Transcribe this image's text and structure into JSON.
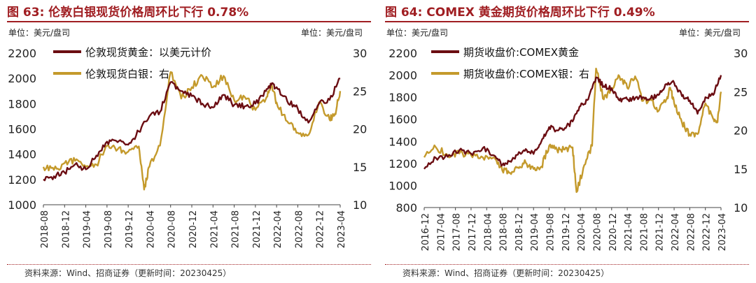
{
  "colors": {
    "gold_series": "#6b0d12",
    "silver_series": "#c49a2c",
    "title": "#a01e22"
  },
  "footer_source": "资料来源：Wind、招商证券（更新时间：20230425）",
  "chart_data": [
    {
      "type": "line",
      "title": "图 63:  伦敦白银现货价格周环比下行 0.78%",
      "unit_left": "单位：美元/盘司",
      "unit_right": "单位：美元/盘司",
      "x_tick_labels": [
        "2018-08",
        "2018-12",
        "2019-04",
        "2019-08",
        "2019-12",
        "2020-04",
        "2020-08",
        "2020-12",
        "2021-04",
        "2021-08",
        "2021-12",
        "2022-04",
        "2022-08",
        "2022-12",
        "2023-04"
      ],
      "x_range": [
        "2018-08",
        "2023-04"
      ],
      "y_left": {
        "range": [
          1000,
          2200
        ],
        "ticks": [
          1000,
          1200,
          1400,
          1600,
          1800,
          2000,
          2200
        ]
      },
      "y_right": {
        "range": [
          10,
          30
        ],
        "ticks": [
          10,
          15,
          20,
          25,
          30
        ]
      },
      "legend_position": "top-left",
      "series": [
        {
          "name": "伦敦现货黄金：以美元计价",
          "axis": "left",
          "color": "#6b0d12",
          "points": [
            [
              "2018-08",
              1200
            ],
            [
              "2018-10",
              1225
            ],
            [
              "2018-12",
              1255
            ],
            [
              "2019-02",
              1320
            ],
            [
              "2019-04",
              1280
            ],
            [
              "2019-06",
              1390
            ],
            [
              "2019-08",
              1500
            ],
            [
              "2019-10",
              1495
            ],
            [
              "2019-12",
              1475
            ],
            [
              "2020-02",
              1580
            ],
            [
              "2020-04",
              1700
            ],
            [
              "2020-06",
              1735
            ],
            [
              "2020-08",
              1970
            ],
            [
              "2020-10",
              1900
            ],
            [
              "2020-12",
              1860
            ],
            [
              "2021-02",
              1800
            ],
            [
              "2021-04",
              1770
            ],
            [
              "2021-06",
              1870
            ],
            [
              "2021-08",
              1790
            ],
            [
              "2021-10",
              1780
            ],
            [
              "2021-12",
              1800
            ],
            [
              "2022-02",
              1900
            ],
            [
              "2022-03",
              1950
            ],
            [
              "2022-04",
              1930
            ],
            [
              "2022-06",
              1820
            ],
            [
              "2022-08",
              1760
            ],
            [
              "2022-10",
              1650
            ],
            [
              "2022-12",
              1800
            ],
            [
              "2023-02",
              1830
            ],
            [
              "2023-04",
              2000
            ]
          ]
        },
        {
          "name": "伦敦现货白银：右",
          "axis": "right",
          "color": "#c49a2c",
          "points": [
            [
              "2018-08",
              15.0
            ],
            [
              "2018-10",
              14.6
            ],
            [
              "2018-12",
              15.5
            ],
            [
              "2019-02",
              15.8
            ],
            [
              "2019-04",
              15.0
            ],
            [
              "2019-06",
              15.3
            ],
            [
              "2019-08",
              17.8
            ],
            [
              "2019-10",
              17.3
            ],
            [
              "2019-12",
              17.0
            ],
            [
              "2020-02",
              17.7
            ],
            [
              "2020-03",
              12.0
            ],
            [
              "2020-04",
              15.0
            ],
            [
              "2020-06",
              17.8
            ],
            [
              "2020-08",
              27.5
            ],
            [
              "2020-10",
              24.0
            ],
            [
              "2020-12",
              25.5
            ],
            [
              "2021-02",
              27.0
            ],
            [
              "2021-04",
              25.5
            ],
            [
              "2021-06",
              27.0
            ],
            [
              "2021-08",
              23.8
            ],
            [
              "2021-10",
              24.2
            ],
            [
              "2021-12",
              22.5
            ],
            [
              "2022-02",
              24.0
            ],
            [
              "2022-03",
              25.8
            ],
            [
              "2022-04",
              23.5
            ],
            [
              "2022-06",
              21.0
            ],
            [
              "2022-08",
              19.5
            ],
            [
              "2022-10",
              19.2
            ],
            [
              "2022-12",
              23.5
            ],
            [
              "2023-02",
              21.2
            ],
            [
              "2023-03",
              22.0
            ],
            [
              "2023-04",
              25.0
            ]
          ]
        }
      ]
    },
    {
      "type": "line",
      "title": "图 64:  COMEX 黄金期货价格周环比下行 0.49%",
      "unit_left": "单位：美元/盘司",
      "unit_right": "单位：美元/盘司",
      "x_tick_labels": [
        "2016-12",
        "2017-04",
        "2017-08",
        "2017-12",
        "2018-04",
        "2018-08",
        "2018-12",
        "2019-04",
        "2019-08",
        "2019-12",
        "2020-04",
        "2020-08",
        "2020-12",
        "2021-04",
        "2021-08",
        "2021-12",
        "2022-04",
        "2022-08",
        "2022-12",
        "2023-04"
      ],
      "x_range": [
        "2016-12",
        "2023-04"
      ],
      "y_left": {
        "range": [
          800,
          2200
        ],
        "ticks": [
          800,
          1000,
          1200,
          1400,
          1600,
          1800,
          2000,
          2200
        ]
      },
      "y_right": {
        "range": [
          10,
          30
        ],
        "ticks": [
          10,
          15,
          20,
          25,
          30
        ]
      },
      "legend_position": "top-left",
      "series": [
        {
          "name": "期货收盘价:COMEX黄金",
          "axis": "left",
          "color": "#6b0d12",
          "points": [
            [
              "2016-12",
              1150
            ],
            [
              "2017-03",
              1250
            ],
            [
              "2017-06",
              1260
            ],
            [
              "2017-09",
              1320
            ],
            [
              "2017-12",
              1290
            ],
            [
              "2018-03",
              1340
            ],
            [
              "2018-06",
              1270
            ],
            [
              "2018-08",
              1185
            ],
            [
              "2018-10",
              1220
            ],
            [
              "2018-12",
              1280
            ],
            [
              "2019-02",
              1330
            ],
            [
              "2019-04",
              1285
            ],
            [
              "2019-06",
              1400
            ],
            [
              "2019-08",
              1530
            ],
            [
              "2019-10",
              1500
            ],
            [
              "2019-12",
              1520
            ],
            [
              "2020-02",
              1580
            ],
            [
              "2020-04",
              1720
            ],
            [
              "2020-06",
              1780
            ],
            [
              "2020-08",
              1980
            ],
            [
              "2020-10",
              1900
            ],
            [
              "2020-12",
              1880
            ],
            [
              "2021-02",
              1770
            ],
            [
              "2021-04",
              1780
            ],
            [
              "2021-06",
              1790
            ],
            [
              "2021-08",
              1800
            ],
            [
              "2021-10",
              1790
            ],
            [
              "2021-12",
              1820
            ],
            [
              "2022-02",
              1920
            ],
            [
              "2022-04",
              1930
            ],
            [
              "2022-06",
              1810
            ],
            [
              "2022-08",
              1770
            ],
            [
              "2022-10",
              1650
            ],
            [
              "2022-12",
              1800
            ],
            [
              "2023-02",
              1820
            ],
            [
              "2023-04",
              2000
            ]
          ]
        },
        {
          "name": "期货收盘价:COMEX银：右",
          "axis": "right",
          "color": "#c49a2c",
          "points": [
            [
              "2016-12",
              16.5
            ],
            [
              "2017-03",
              17.8
            ],
            [
              "2017-06",
              16.8
            ],
            [
              "2017-09",
              17.0
            ],
            [
              "2017-12",
              16.8
            ],
            [
              "2018-03",
              16.5
            ],
            [
              "2018-06",
              16.5
            ],
            [
              "2018-08",
              14.8
            ],
            [
              "2018-10",
              14.5
            ],
            [
              "2018-12",
              15.2
            ],
            [
              "2019-02",
              15.8
            ],
            [
              "2019-04",
              15.0
            ],
            [
              "2019-06",
              15.3
            ],
            [
              "2019-08",
              18.0
            ],
            [
              "2019-10",
              17.5
            ],
            [
              "2019-12",
              17.5
            ],
            [
              "2020-02",
              17.8
            ],
            [
              "2020-03",
              12.0
            ],
            [
              "2020-05",
              15.5
            ],
            [
              "2020-07",
              18.0
            ],
            [
              "2020-08",
              28.0
            ],
            [
              "2020-10",
              24.0
            ],
            [
              "2020-12",
              25.5
            ],
            [
              "2021-02",
              27.0
            ],
            [
              "2021-04",
              25.5
            ],
            [
              "2021-06",
              27.0
            ],
            [
              "2021-08",
              23.8
            ],
            [
              "2021-10",
              24.0
            ],
            [
              "2021-12",
              22.5
            ],
            [
              "2022-02",
              24.0
            ],
            [
              "2022-03",
              25.5
            ],
            [
              "2022-04",
              23.5
            ],
            [
              "2022-06",
              21.0
            ],
            [
              "2022-08",
              19.5
            ],
            [
              "2022-10",
              19.5
            ],
            [
              "2022-12",
              23.5
            ],
            [
              "2023-02",
              21.5
            ],
            [
              "2023-03",
              21.0
            ],
            [
              "2023-04",
              25.0
            ]
          ]
        }
      ]
    }
  ]
}
